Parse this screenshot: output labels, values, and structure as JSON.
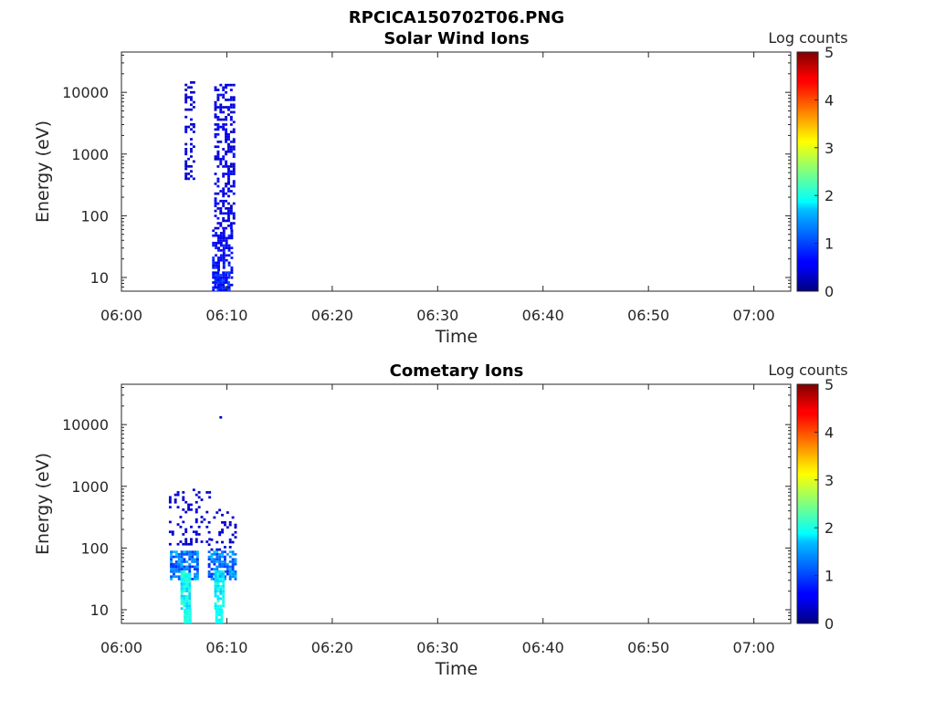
{
  "figure": {
    "title": "RPCICA150702T06.PNG"
  },
  "chart_data": [
    {
      "type": "heatmap",
      "title": "Solar Wind Ions",
      "xlabel": "Time",
      "ylabel": "Energy (eV)",
      "x_ticks": [
        "06:00",
        "06:10",
        "06:20",
        "06:30",
        "06:40",
        "06:50",
        "07:00"
      ],
      "xlim_minutes": [
        0,
        63.5
      ],
      "y_ticks": [
        {
          "value": 10,
          "label": "10"
        },
        {
          "value": 100,
          "label": "100"
        },
        {
          "value": 1000,
          "label": "1000"
        },
        {
          "value": 10000,
          "label": "10000"
        }
      ],
      "ylim": [
        6,
        45000
      ],
      "y_scale": "log",
      "colorbar": {
        "label": "Log counts",
        "range": [
          0,
          5
        ],
        "ticks": [
          "0",
          "1",
          "2",
          "3",
          "4",
          "5"
        ],
        "colormap": "jet"
      },
      "clusters": [
        {
          "t": [
            6.0,
            6.9
          ],
          "e": [
            380,
            14000
          ],
          "level": [
            0.3,
            0.5
          ],
          "density": 0.28
        },
        {
          "t": [
            8.8,
            10.6
          ],
          "e": [
            60,
            13000
          ],
          "level": [
            0.3,
            0.7
          ],
          "density": 0.45
        },
        {
          "t": [
            8.6,
            10.4
          ],
          "e": [
            6,
            60
          ],
          "level": [
            0.4,
            0.9
          ],
          "density": 0.55
        },
        {
          "t": [
            8.8,
            10.2
          ],
          "e": [
            6,
            12
          ],
          "level": [
            0.5,
            1.0
          ],
          "density": 0.75
        }
      ]
    },
    {
      "type": "heatmap",
      "title": "Cometary Ions",
      "xlabel": "Time",
      "ylabel": "Energy (eV)",
      "x_ticks": [
        "06:00",
        "06:10",
        "06:20",
        "06:30",
        "06:40",
        "06:50",
        "07:00"
      ],
      "xlim_minutes": [
        0,
        63.5
      ],
      "y_ticks": [
        {
          "value": 10,
          "label": "10"
        },
        {
          "value": 100,
          "label": "100"
        },
        {
          "value": 1000,
          "label": "1000"
        },
        {
          "value": 10000,
          "label": "10000"
        }
      ],
      "ylim": [
        6,
        45000
      ],
      "y_scale": "log",
      "colorbar": {
        "label": "Log counts",
        "range": [
          0,
          5
        ],
        "ticks": [
          "0",
          "1",
          "2",
          "3",
          "4",
          "5"
        ],
        "colormap": "jet"
      },
      "clusters": [
        {
          "t": [
            4.5,
            8.5
          ],
          "e": [
            110,
            900
          ],
          "level": [
            0.3,
            0.5
          ],
          "density": 0.18
        },
        {
          "t": [
            8.2,
            10.8
          ],
          "e": [
            90,
            400
          ],
          "level": [
            0.3,
            0.5
          ],
          "density": 0.15
        },
        {
          "t": [
            4.6,
            7.2
          ],
          "e": [
            30,
            90
          ],
          "level": [
            0.8,
            1.6
          ],
          "density": 0.75
        },
        {
          "t": [
            8.2,
            10.8
          ],
          "e": [
            30,
            90
          ],
          "level": [
            0.8,
            1.6
          ],
          "density": 0.7
        },
        {
          "t": [
            5.6,
            6.6
          ],
          "e": [
            10,
            40
          ],
          "level": [
            1.6,
            2.2
          ],
          "density": 0.9
        },
        {
          "t": [
            8.8,
            9.8
          ],
          "e": [
            10,
            40
          ],
          "level": [
            1.6,
            2.1
          ],
          "density": 0.9
        },
        {
          "t": [
            5.9,
            6.6
          ],
          "e": [
            6,
            10
          ],
          "level": [
            1.9,
            2.1
          ],
          "density": 0.95
        },
        {
          "t": [
            8.9,
            9.6
          ],
          "e": [
            6,
            10
          ],
          "level": [
            1.8,
            2.0
          ],
          "density": 0.95
        }
      ],
      "points": [
        {
          "t": 9.3,
          "e": 12500,
          "level": 0.3
        }
      ]
    }
  ]
}
